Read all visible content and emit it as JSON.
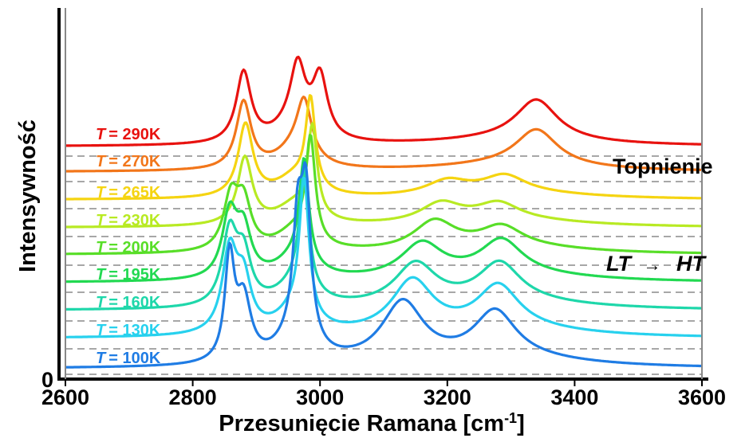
{
  "chart_data": {
    "type": "line",
    "xlabel": "Przesunięcie Ramana [cm",
    "xlabel_sup": "-1",
    "xlabel_suffix": "]",
    "ylabel": "Intensywność",
    "xlim": [
      2600,
      3600
    ],
    "x_ticks": [
      2600,
      2800,
      3000,
      3200,
      3400,
      3600
    ],
    "y_ticks": [
      0
    ],
    "grid": "dashed baselines",
    "label_prefix": "T",
    "annotations": {
      "melting": "Topnienie",
      "transition_left": "LT",
      "transition_arrow": "→",
      "transition_right": "HT"
    },
    "series": [
      {
        "name": "= 290K",
        "color": "#e8120f",
        "peaks": [
          [
            2600,
            2.0
          ],
          [
            2880,
            1.3
          ],
          [
            2965,
            1.1
          ],
          [
            3000,
            1.1
          ],
          [
            3340,
            0.75
          ],
          [
            3600,
            0.45
          ]
        ]
      },
      {
        "name": "= 270K",
        "color": "#f2761a",
        "peaks": [
          [
            2600,
            2.0
          ],
          [
            2880,
            1.2
          ],
          [
            2975,
            1.0
          ],
          [
            3340,
            0.65
          ],
          [
            3600,
            0.45
          ]
        ]
      },
      {
        "name": "= 265K",
        "color": "#f5d411",
        "peaks": [
          [
            2600,
            2.0
          ],
          [
            2883,
            1.3
          ],
          [
            2985,
            1.6
          ],
          [
            3200,
            0.25
          ],
          [
            3290,
            0.3
          ],
          [
            3600,
            0.45
          ]
        ]
      },
      {
        "name": "= 230K",
        "color": "#b8ea23",
        "peaks": [
          [
            2600,
            2.0
          ],
          [
            2882,
            1.2
          ],
          [
            2988,
            1.6
          ],
          [
            3190,
            0.35
          ],
          [
            3280,
            0.3
          ],
          [
            3600,
            0.45
          ]
        ]
      },
      {
        "name": "= 200K",
        "color": "#58de28",
        "peaks": [
          [
            2600,
            2.0
          ],
          [
            2860,
            0.9
          ],
          [
            2880,
            0.8
          ],
          [
            2985,
            1.8
          ],
          [
            3180,
            0.5
          ],
          [
            3285,
            0.35
          ],
          [
            3600,
            0.45
          ]
        ]
      },
      {
        "name": "= 195K",
        "color": "#22d951",
        "peaks": [
          [
            2600,
            2.0
          ],
          [
            2858,
            1.1
          ],
          [
            2880,
            0.8
          ],
          [
            2975,
            1.8
          ],
          [
            3160,
            0.6
          ],
          [
            3285,
            0.6
          ],
          [
            3600,
            0.45
          ]
        ]
      },
      {
        "name": "= 160K",
        "color": "#1ed7aa",
        "peaks": [
          [
            2600,
            2.0
          ],
          [
            2858,
            1.2
          ],
          [
            2880,
            0.8
          ],
          [
            2975,
            2.0
          ],
          [
            3150,
            0.7
          ],
          [
            3282,
            0.65
          ],
          [
            3600,
            0.45
          ]
        ]
      },
      {
        "name": "= 130K",
        "color": "#27d1ee",
        "peaks": [
          [
            2600,
            2.0
          ],
          [
            2858,
            1.3
          ],
          [
            2880,
            0.8
          ],
          [
            2975,
            2.2
          ],
          [
            3145,
            0.85
          ],
          [
            3280,
            0.7
          ],
          [
            3600,
            0.45
          ]
        ]
      },
      {
        "name": "= 100K",
        "color": "#1f7ce4",
        "peaks": [
          [
            2600,
            2.0
          ],
          [
            2858,
            1.5
          ],
          [
            2880,
            0.9
          ],
          [
            2965,
            1.6
          ],
          [
            2978,
            2.1
          ],
          [
            3130,
            0.9
          ],
          [
            3275,
            0.7
          ],
          [
            3600,
            0.45
          ]
        ]
      }
    ]
  }
}
